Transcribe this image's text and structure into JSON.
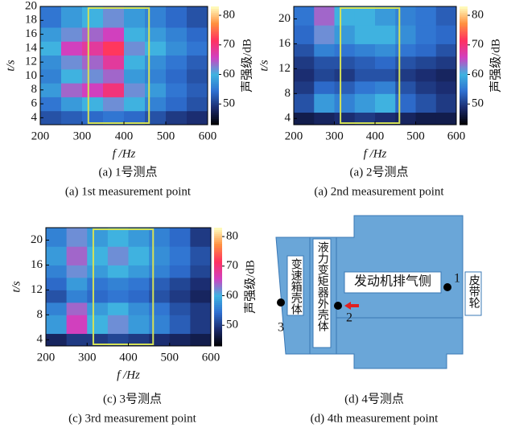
{
  "chart_data": [
    {
      "type": "heatmap",
      "xlabel": "f /Hz",
      "ylabel": "t/s",
      "colorbar_label": "声强级/dB",
      "xlim": [
        200,
        600
      ],
      "xticks": [
        200,
        300,
        400,
        500,
        600
      ],
      "ylim": [
        3,
        20
      ],
      "yticks": [
        4,
        6,
        8,
        10,
        12,
        14,
        16,
        18,
        20
      ],
      "x_bins": [
        200,
        250,
        300,
        350,
        400,
        450,
        500,
        550,
        600
      ],
      "y_bins": [
        3,
        5,
        7,
        9,
        11,
        13,
        15,
        17,
        20
      ],
      "z": [
        [
          52,
          53,
          54,
          55,
          54,
          52,
          50,
          49
        ],
        [
          55,
          58,
          60,
          62,
          60,
          56,
          54,
          52
        ],
        [
          58,
          64,
          66,
          70,
          62,
          58,
          55,
          53
        ],
        [
          56,
          60,
          62,
          64,
          58,
          56,
          54,
          52
        ],
        [
          57,
          62,
          64,
          68,
          60,
          57,
          55,
          53
        ],
        [
          60,
          66,
          68,
          72,
          62,
          60,
          57,
          55
        ],
        [
          58,
          62,
          64,
          66,
          60,
          58,
          56,
          54
        ],
        [
          55,
          58,
          60,
          62,
          58,
          56,
          54,
          52
        ]
      ],
      "clim": [
        43,
        83
      ],
      "cticks": [
        50,
        60,
        70,
        80
      ],
      "colormap": [
        "#000000",
        "#1a2a6c",
        "#2f6fd0",
        "#3fb4e0",
        "#d040c0",
        "#ff3060",
        "#ff9040",
        "#ffffc0"
      ],
      "highlight_x": [
        315,
        460
      ],
      "highlight_color": "#d4e157",
      "caption": "(a) 1号测点",
      "caption_en": "(a) 1st measurement point"
    },
    {
      "type": "heatmap",
      "xlabel": "f /Hz",
      "ylabel": "t/s",
      "colorbar_label": "声强级/dB",
      "xlim": [
        200,
        600
      ],
      "xticks": [
        200,
        300,
        400,
        500,
        600
      ],
      "ylim": [
        3,
        22
      ],
      "yticks": [
        4,
        8,
        12,
        16,
        20
      ],
      "x_bins": [
        200,
        250,
        300,
        350,
        400,
        450,
        500,
        550,
        600
      ],
      "y_bins": [
        3,
        5,
        8,
        10,
        12,
        14,
        16,
        19,
        22
      ],
      "z": [
        [
          47,
          48,
          49,
          50,
          49,
          48,
          47,
          47
        ],
        [
          52,
          58,
          56,
          58,
          60,
          54,
          52,
          50
        ],
        [
          50,
          54,
          53,
          55,
          56,
          52,
          50,
          49
        ],
        [
          49,
          51,
          50,
          52,
          52,
          50,
          49,
          48
        ],
        [
          50,
          52,
          52,
          53,
          54,
          52,
          51,
          50
        ],
        [
          52,
          56,
          55,
          56,
          57,
          55,
          54,
          52
        ],
        [
          54,
          62,
          58,
          60,
          60,
          57,
          55,
          54
        ],
        [
          55,
          64,
          60,
          60,
          58,
          56,
          55,
          53
        ]
      ],
      "clim": [
        43,
        83
      ],
      "cticks": [
        50,
        60,
        70,
        80
      ],
      "colormap": [
        "#000000",
        "#1a2a6c",
        "#2f6fd0",
        "#3fb4e0",
        "#d040c0",
        "#ff3060",
        "#ff9040",
        "#ffffc0"
      ],
      "highlight_x": [
        315,
        460
      ],
      "highlight_color": "#d4e157",
      "caption": "(a) 2号测点",
      "caption_en": "(a) 2nd measurement point"
    },
    {
      "type": "heatmap",
      "xlabel": "f /Hz",
      "ylabel": "t/s",
      "colorbar_label": "声强级/dB",
      "xlim": [
        200,
        600
      ],
      "xticks": [
        200,
        300,
        400,
        500,
        600
      ],
      "ylim": [
        3,
        22
      ],
      "yticks": [
        4,
        8,
        12,
        16,
        20
      ],
      "x_bins": [
        200,
        250,
        300,
        350,
        400,
        450,
        500,
        550,
        600
      ],
      "y_bins": [
        3,
        5,
        8,
        10,
        12,
        14,
        16,
        19,
        22
      ],
      "z": [
        [
          48,
          50,
          50,
          51,
          50,
          49,
          48,
          47
        ],
        [
          58,
          66,
          60,
          62,
          58,
          56,
          53,
          50
        ],
        [
          56,
          64,
          58,
          60,
          57,
          55,
          52,
          50
        ],
        [
          52,
          56,
          54,
          55,
          54,
          52,
          50,
          48
        ],
        [
          54,
          58,
          55,
          56,
          55,
          53,
          51,
          49
        ],
        [
          56,
          62,
          58,
          60,
          58,
          56,
          54,
          51
        ],
        [
          58,
          64,
          60,
          62,
          60,
          57,
          55,
          52
        ],
        [
          56,
          62,
          58,
          60,
          58,
          56,
          54,
          50
        ]
      ],
      "clim": [
        43,
        83
      ],
      "cticks": [
        50,
        60,
        70,
        80
      ],
      "colormap": [
        "#000000",
        "#1a2a6c",
        "#2f6fd0",
        "#3fb4e0",
        "#d040c0",
        "#ff3060",
        "#ff9040",
        "#ffffc0"
      ],
      "highlight_x": [
        315,
        460
      ],
      "highlight_color": "#d4e157",
      "caption": "(c) 3号测点",
      "caption_en": "(c) 3rd measurement point"
    }
  ],
  "diagram": {
    "gearbox": "变速箱壳体",
    "converter": "液力变矩器外壳体",
    "engine": "发动机排气侧",
    "pulley": "皮带轮",
    "points": [
      "1",
      "2",
      "3"
    ],
    "caption": "(d) 4号测点",
    "caption_en": "(d) 4th measurement point"
  }
}
